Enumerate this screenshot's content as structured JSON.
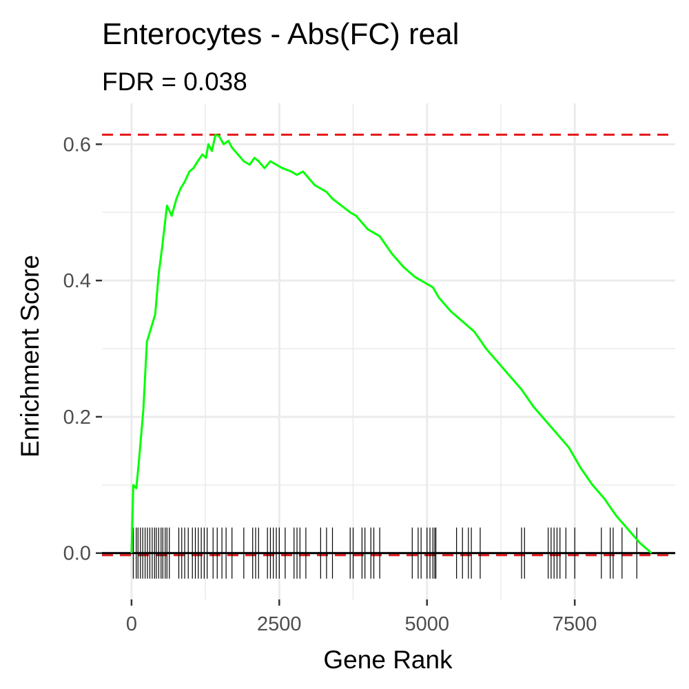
{
  "chart_data": {
    "type": "line",
    "title": "Enterocytes - Abs(FC) real",
    "subtitle": "FDR = 0.038",
    "xlabel": "Gene Rank",
    "ylabel": "Enrichment Score",
    "xlim": [
      -500,
      9200
    ],
    "ylim": [
      -0.068,
      0.66
    ],
    "x_ticks": [
      0,
      2500,
      5000,
      7500
    ],
    "x_tick_labels": [
      "0",
      "2500",
      "5000",
      "7500"
    ],
    "y_ticks": [
      0.0,
      0.2,
      0.4,
      0.6
    ],
    "y_tick_labels": [
      "0.0",
      "0.2",
      "0.4",
      "0.6"
    ],
    "grid": true,
    "colors": {
      "line": "#00ff00",
      "threshold": "#e41a1c",
      "rug": "#000000",
      "grid": "#ebebeb",
      "zero_line": "#000000"
    },
    "thresholds": [
      0.614,
      -0.003
    ],
    "series": [
      {
        "x": [
          0,
          30,
          80,
          120,
          200,
          260,
          330,
          400,
          460,
          520,
          600,
          680,
          760,
          830,
          900,
          980,
          1050,
          1120,
          1200,
          1260,
          1300,
          1360,
          1420,
          1480,
          1560,
          1640,
          1700,
          1800,
          1900,
          2000,
          2080,
          2150,
          2250,
          2350,
          2450,
          2550,
          2700,
          2800,
          2900,
          3000,
          3100,
          3200,
          3300,
          3400,
          3550,
          3700,
          3800,
          3900,
          4000,
          4100,
          4200,
          4400,
          4600,
          4800,
          5000,
          5100,
          5200,
          5400,
          5600,
          5800,
          6000,
          6200,
          6400,
          6600,
          6800,
          7000,
          7200,
          7400,
          7600,
          7800,
          8000,
          8200,
          8400,
          8600,
          8800
        ],
        "y": [
          0.0,
          0.1,
          0.095,
          0.13,
          0.21,
          0.31,
          0.33,
          0.35,
          0.41,
          0.45,
          0.51,
          0.495,
          0.52,
          0.535,
          0.545,
          0.56,
          0.565,
          0.575,
          0.585,
          0.58,
          0.6,
          0.59,
          0.614,
          0.612,
          0.6,
          0.605,
          0.595,
          0.585,
          0.575,
          0.57,
          0.58,
          0.575,
          0.565,
          0.575,
          0.57,
          0.565,
          0.56,
          0.555,
          0.56,
          0.55,
          0.54,
          0.535,
          0.53,
          0.52,
          0.51,
          0.5,
          0.495,
          0.485,
          0.475,
          0.47,
          0.465,
          0.44,
          0.42,
          0.405,
          0.395,
          0.39,
          0.375,
          0.355,
          0.34,
          0.325,
          0.3,
          0.28,
          0.26,
          0.24,
          0.215,
          0.195,
          0.175,
          0.155,
          0.125,
          0.1,
          0.08,
          0.055,
          0.035,
          0.015,
          0.0
        ]
      }
    ],
    "rug_x": [
      30,
      80,
      110,
      150,
      190,
      230,
      270,
      310,
      350,
      390,
      420,
      460,
      500,
      530,
      570,
      600,
      640,
      800,
      850,
      900,
      960,
      1030,
      1080,
      1130,
      1180,
      1230,
      1280,
      1380,
      1450,
      1530,
      1600,
      1700,
      1900,
      2050,
      2100,
      2150,
      2300,
      2350,
      2400,
      2450,
      2500,
      2600,
      2750,
      2800,
      2850,
      2950,
      3200,
      3300,
      3400,
      3700,
      3750,
      3900,
      3950,
      4050,
      4100,
      4200,
      4750,
      4850,
      4900,
      5000,
      5050,
      5100,
      5130,
      5150,
      5500,
      5600,
      5700,
      5750,
      5900,
      6600,
      6650,
      7050,
      7100,
      7150,
      7200,
      7250,
      7350,
      7500,
      7950,
      8100,
      8150,
      8300,
      8550
    ]
  }
}
